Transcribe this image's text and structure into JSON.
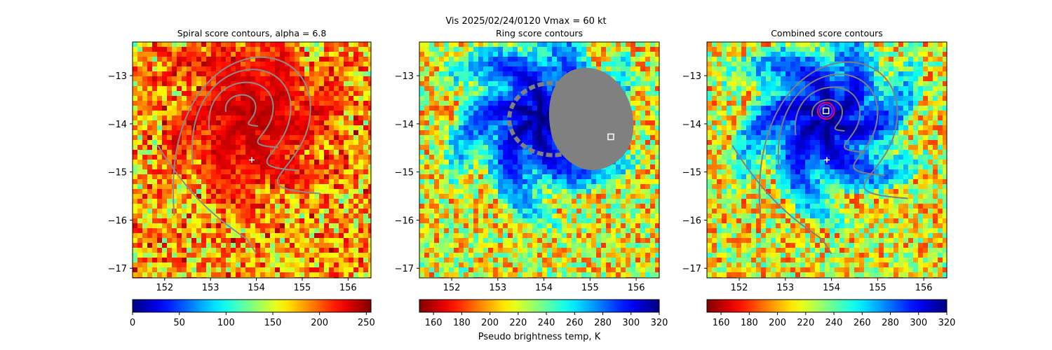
{
  "figure": {
    "suptitle_line1": "Vis  2025/02/24/0120    Vmax = 60 kt",
    "colorbar_label": "Pseudo brightness temp, K"
  },
  "chart_data": [
    {
      "type": "heatmap",
      "title": "Spiral score contours, alpha =  6.8",
      "xlim": [
        151.3,
        156.5
      ],
      "ylim": [
        -17.2,
        -12.3
      ],
      "xticks": [
        "152",
        "153",
        "154",
        "155",
        "156"
      ],
      "yticks": [
        "−13",
        "−14",
        "−15",
        "−16",
        "−17"
      ],
      "colormap": "jet",
      "colorbar": {
        "range": [
          0,
          255
        ],
        "ticks": [
          "0",
          "50",
          "100",
          "150",
          "200",
          "250"
        ],
        "reversed": false
      },
      "contour_color": "#8c8c8c",
      "marker": {
        "shape": "plus",
        "x": 153.9,
        "y": -14.75,
        "color": "#ffffff"
      }
    },
    {
      "type": "heatmap",
      "title": "Ring score contours",
      "xlim": [
        151.3,
        156.5
      ],
      "ylim": [
        -17.2,
        -12.3
      ],
      "xticks": [
        "152",
        "153",
        "154",
        "155",
        "156"
      ],
      "yticks": [
        "−13",
        "−14",
        "−15",
        "−16",
        "−17"
      ],
      "colormap": "jet_r",
      "colorbar": {
        "range": [
          150,
          320
        ],
        "ticks": [
          "160",
          "180",
          "200",
          "220",
          "240",
          "260",
          "280",
          "300",
          "320"
        ],
        "reversed": true
      },
      "contour_color": "#808080",
      "marker": {
        "shape": "square",
        "x": 155.45,
        "y": -14.27,
        "color": "#ffffff"
      }
    },
    {
      "type": "heatmap",
      "title": "Combined score contours",
      "xlim": [
        151.3,
        156.5
      ],
      "ylim": [
        -17.2,
        -12.3
      ],
      "xticks": [
        "152",
        "153",
        "154",
        "155",
        "156"
      ],
      "yticks": [
        "−13",
        "−14",
        "−15",
        "−16",
        "−17"
      ],
      "colormap": "jet_r",
      "colorbar": {
        "range": [
          150,
          320
        ],
        "ticks": [
          "160",
          "180",
          "200",
          "220",
          "240",
          "260",
          "280",
          "300",
          "320"
        ],
        "reversed": true
      },
      "contour_color": "#808080",
      "marker": {
        "shape": "plus",
        "x": 153.9,
        "y": -14.75,
        "color": "#ffffff"
      },
      "center_marker": {
        "shape": "square",
        "x": 153.88,
        "y": -13.73,
        "color": "#ffffff"
      },
      "ring_marker": {
        "x": 153.88,
        "y": -13.73,
        "radius_deg": 0.18,
        "color": "#e6007e"
      }
    }
  ]
}
